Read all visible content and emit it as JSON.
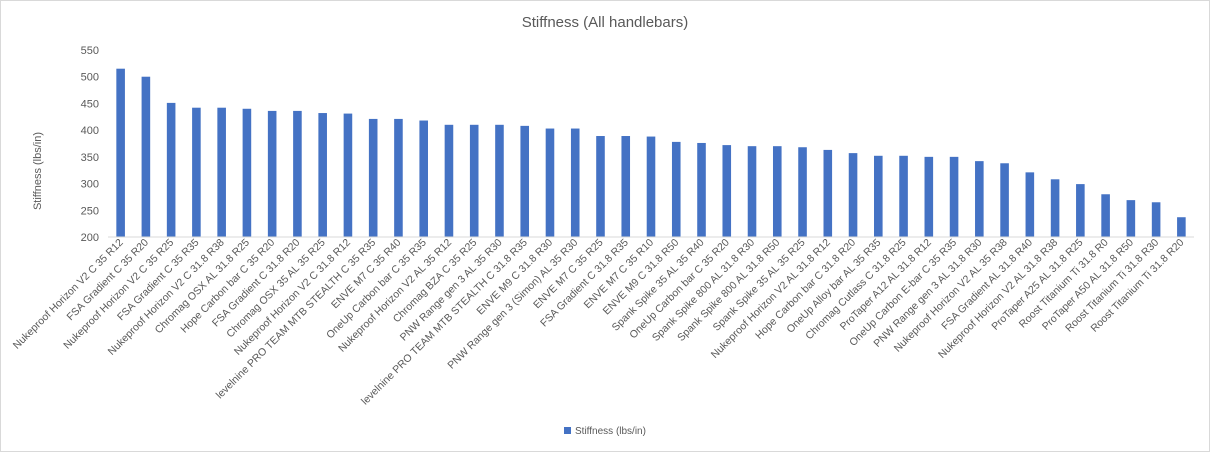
{
  "chart_data": {
    "type": "bar",
    "title": "Stiffness (All handlebars)",
    "xlabel": "",
    "ylabel": "Stiffness (lbs/in)",
    "ylim": [
      200,
      550
    ],
    "yticks": [
      200,
      250,
      300,
      350,
      400,
      450,
      500,
      550
    ],
    "grid": false,
    "legend": "bottom-center",
    "bar_color": "#4472C4",
    "categories": [
      "Nukeproof Horizon V2 C 35 R12",
      "FSA Gradient C 35 R20",
      "Nukeproof Horizon V2 C 35 R25",
      "FSA Gradient C 35 R35",
      "Nukeproof Horizon V2 C 31.8 R38",
      "Chromag OSX AL 31.8 R25",
      "Hope Carbon bar C 35 R20",
      "FSA Gradient C 31.8 R20",
      "Chromag OSX 35 AL 35 R25",
      "Nukeproof Horizon V2 C 31.8 R12",
      "levelnine PRO TEAM MTB STEALTH C 35 R35",
      "ENVE M7 C 35 R40",
      "OneUp Carbon bar C 35 R35",
      "Nukeproof Horizon V2 AL 35 R12",
      "Chromag BZA C 35 R25",
      "PNW Range gen 3 AL 35 R30",
      "levelnine PRO TEAM MTB STEALTH C 31.8 R35",
      "ENVE M9 C 31.8 R30",
      "PNW Range gen 3 (Simon) AL 35 R30",
      "ENVE M7 C 35 R25",
      "FSA Gradient C 31.8 R35",
      "ENVE M7 C 35 R10",
      "ENVE M9 C 31.8 R50",
      "Spank Spike 35 AL 35 R40",
      "OneUp Carbon bar C 35 R20",
      "Spank Spike 800 AL 31.8 R30",
      "Spank Spike 800 AL 31.8 R50",
      "Spank Spike 35 AL 35 R25",
      "Nukeproof Horizon V2 AL 31.8 R12",
      "Hope Carbon bar C 31.8 R20",
      "OneUp Alloy bar AL 35 R35",
      "Chromag Cutlass C 31.8 R25",
      "ProTaper A12 AL 31.8 R12",
      "OneUp Carbon E-bar C 35 R35",
      "PNW Range gen 3 AL 31.8 R30",
      "Nukeproof Horizon V2 AL 35 R38",
      "FSA Gradient AL 31.8 R40",
      "Nukeproof Horizon V2 AL 31.8 R38",
      "ProTaper A25 AL 31.8 R25",
      "Roost Titanium Ti 31.8 R0",
      "ProTaper A50 AL 31.8 R50",
      "Roost Titanium Ti 31.8 R30",
      "Roost Titanium Ti 31.8 R20"
    ],
    "series": [
      {
        "name": "Stiffness (lbs/in)",
        "values": [
          515,
          500,
          451,
          442,
          442,
          440,
          436,
          436,
          432,
          431,
          421,
          421,
          418,
          410,
          410,
          410,
          408,
          403,
          403,
          389,
          389,
          388,
          378,
          376,
          372,
          370,
          370,
          368,
          363,
          357,
          352,
          352,
          350,
          350,
          342,
          338,
          321,
          308,
          299,
          280,
          269,
          265,
          237
        ]
      }
    ]
  }
}
